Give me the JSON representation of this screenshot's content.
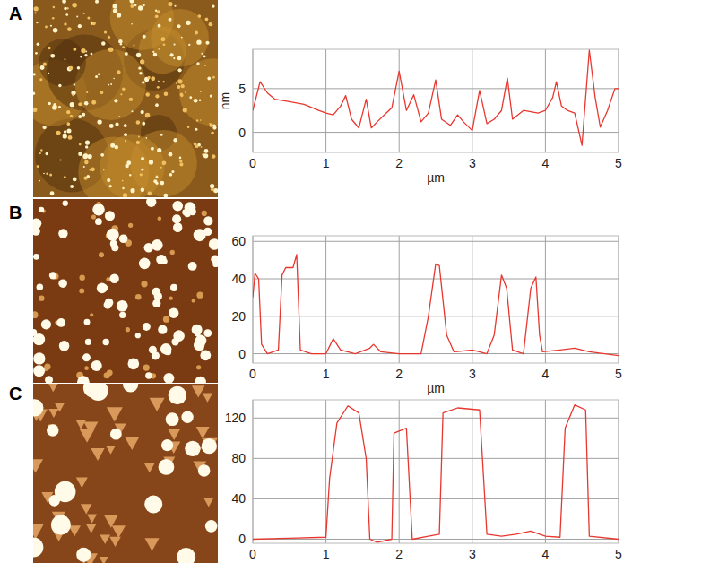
{
  "chart_data": [
    {
      "type": "line",
      "panel": "A",
      "x_label": "µm",
      "y_label": "nm",
      "color": "#e8372f",
      "grid": true,
      "xlim": [
        0,
        5
      ],
      "xticks": [
        0,
        1,
        2,
        3,
        4,
        5
      ],
      "ylim": [
        -2.3,
        9.5
      ],
      "yticks": [
        0,
        5
      ],
      "x": [
        0,
        0.1,
        0.2,
        0.3,
        0.5,
        0.7,
        0.9,
        1.0,
        1.1,
        1.2,
        1.27,
        1.35,
        1.45,
        1.55,
        1.62,
        1.7,
        1.8,
        1.9,
        2.0,
        2.1,
        2.2,
        2.3,
        2.4,
        2.5,
        2.58,
        2.7,
        2.8,
        2.88,
        3.0,
        3.1,
        3.2,
        3.3,
        3.4,
        3.48,
        3.55,
        3.7,
        3.9,
        4.0,
        4.1,
        4.15,
        4.22,
        4.3,
        4.4,
        4.5,
        4.6,
        4.68,
        4.75,
        4.85,
        4.95,
        5.0
      ],
      "values": [
        2.5,
        5.8,
        4.5,
        3.8,
        3.5,
        3.2,
        2.5,
        2.2,
        2.0,
        3.0,
        4.2,
        1.5,
        0.5,
        3.8,
        0.5,
        1.2,
        2.0,
        2.8,
        7.0,
        2.5,
        4.3,
        1.2,
        2.2,
        6.0,
        1.5,
        0.8,
        2.0,
        1.2,
        0.2,
        4.8,
        1.0,
        1.5,
        2.5,
        6.2,
        1.5,
        2.5,
        2.2,
        2.5,
        4.0,
        5.8,
        3.0,
        2.5,
        2.2,
        -1.5,
        9.4,
        4.0,
        0.6,
        2.5,
        5.0,
        5.0
      ]
    },
    {
      "type": "line",
      "panel": "B",
      "x_label": "µm",
      "color": "#e8372f",
      "grid": true,
      "xlim": [
        0,
        5
      ],
      "xticks": [
        0,
        1,
        2,
        3,
        4,
        5
      ],
      "ylim": [
        -5,
        63
      ],
      "yticks": [
        0,
        20,
        40,
        60
      ],
      "x": [
        0,
        0.03,
        0.08,
        0.12,
        0.2,
        0.35,
        0.4,
        0.45,
        0.55,
        0.6,
        0.65,
        0.8,
        1.0,
        1.1,
        1.2,
        1.4,
        1.6,
        1.65,
        1.75,
        2.0,
        2.3,
        2.4,
        2.5,
        2.55,
        2.65,
        2.75,
        3.0,
        3.2,
        3.3,
        3.4,
        3.47,
        3.55,
        3.7,
        3.8,
        3.87,
        3.92,
        3.96,
        4.2,
        4.4,
        4.6,
        5.0
      ],
      "values": [
        30,
        43,
        40,
        5,
        0,
        2,
        42,
        46,
        46,
        53,
        2,
        0,
        0,
        8,
        2,
        0,
        3,
        5,
        1,
        0,
        0,
        20,
        48,
        47,
        10,
        1,
        2,
        0,
        10,
        42,
        35,
        2,
        0,
        35,
        41,
        10,
        1,
        2,
        3,
        1,
        -1
      ]
    },
    {
      "type": "line",
      "panel": "C",
      "color": "#e8372f",
      "grid": true,
      "xlim": [
        0,
        5
      ],
      "xticks": [
        0,
        1,
        2,
        3,
        4,
        5
      ],
      "ylim": [
        -4,
        138
      ],
      "yticks": [
        0,
        40,
        80,
        120
      ],
      "x": [
        0,
        0.5,
        1.0,
        1.05,
        1.15,
        1.3,
        1.45,
        1.55,
        1.6,
        1.7,
        1.9,
        1.93,
        2.1,
        2.18,
        2.4,
        2.55,
        2.6,
        2.8,
        3.1,
        3.2,
        3.4,
        3.6,
        3.8,
        4.0,
        4.2,
        4.27,
        4.4,
        4.55,
        4.6,
        5.0
      ],
      "values": [
        0,
        1,
        2,
        60,
        115,
        132,
        125,
        80,
        0,
        -3,
        0,
        105,
        110,
        0,
        3,
        5,
        125,
        130,
        128,
        5,
        3,
        5,
        8,
        3,
        2,
        110,
        133,
        128,
        3,
        0
      ]
    }
  ]
}
